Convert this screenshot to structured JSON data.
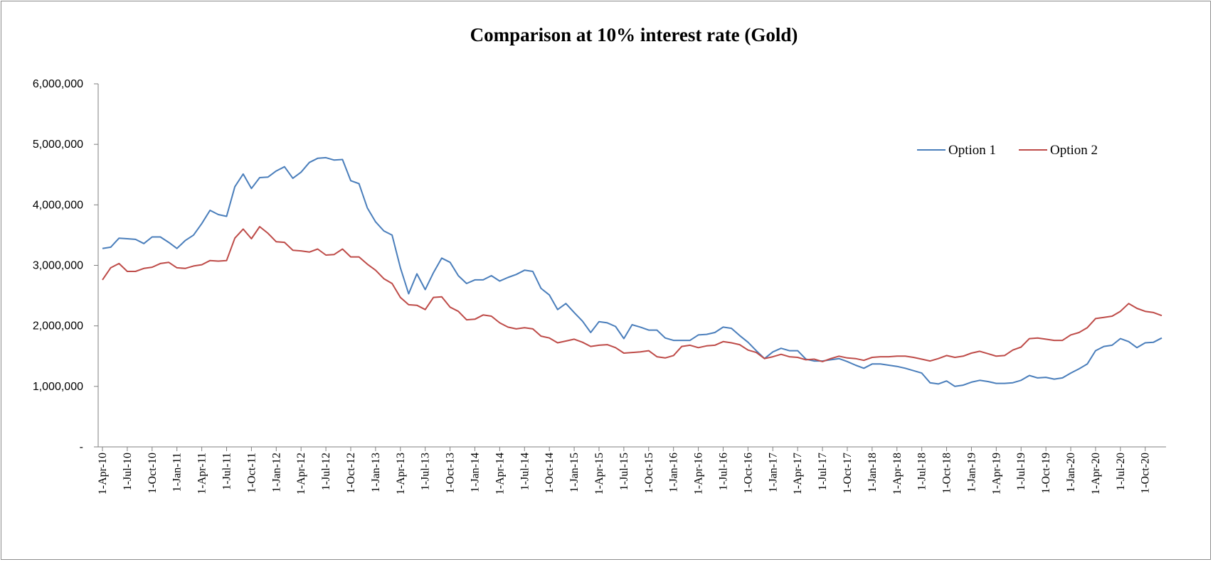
{
  "chart_data": {
    "type": "line",
    "title": "Comparison at 10% interest rate (Gold)",
    "xlabel": "",
    "ylabel": "",
    "ylim": [
      0,
      6000000
    ],
    "yticks": [
      0,
      1000000,
      2000000,
      3000000,
      4000000,
      5000000,
      6000000
    ],
    "ytick_labels": [
      "-",
      "1,000,000",
      "2,000,000",
      "3,000,000",
      "4,000,000",
      "5,000,000",
      "6,000,000"
    ],
    "x_start": "1-Apr-10",
    "x_interval_months": 1,
    "tick_labels": [
      "1-Apr-10",
      "1-Jul-10",
      "1-Oct-10",
      "1-Jan-11",
      "1-Apr-11",
      "1-Jul-11",
      "1-Oct-11",
      "1-Jan-12",
      "1-Apr-12",
      "1-Jul-12",
      "1-Oct-12",
      "1-Jan-13",
      "1-Apr-13",
      "1-Jul-13",
      "1-Oct-13",
      "1-Jan-14",
      "1-Apr-14",
      "1-Jul-14",
      "1-Oct-14",
      "1-Jan-15",
      "1-Apr-15",
      "1-Jul-15",
      "1-Oct-15",
      "1-Jan-16",
      "1-Apr-16",
      "1-Jul-16",
      "1-Oct-16",
      "1-Jan-17",
      "1-Apr-17",
      "1-Jul-17",
      "1-Oct-17",
      "1-Jan-18",
      "1-Apr-18",
      "1-Jul-18",
      "1-Oct-18",
      "1-Jan-19",
      "1-Apr-19",
      "1-Jul-19",
      "1-Oct-19",
      "1-Jan-20",
      "1-Apr-20",
      "1-Jul-20",
      "1-Oct-20"
    ],
    "grid": false,
    "legend_position": "top-right",
    "series": [
      {
        "name": "Option 1",
        "color": "#4a7ebb",
        "values": [
          3280000,
          3300000,
          3450000,
          3440000,
          3430000,
          3360000,
          3470000,
          3470000,
          3380000,
          3280000,
          3410000,
          3500000,
          3690000,
          3910000,
          3840000,
          3810000,
          4300000,
          4510000,
          4270000,
          4450000,
          4460000,
          4560000,
          4630000,
          4440000,
          4540000,
          4700000,
          4770000,
          4780000,
          4740000,
          4750000,
          4400000,
          4350000,
          3950000,
          3720000,
          3570000,
          3500000,
          2960000,
          2530000,
          2860000,
          2600000,
          2880000,
          3120000,
          3050000,
          2830000,
          2700000,
          2760000,
          2760000,
          2830000,
          2740000,
          2800000,
          2850000,
          2920000,
          2900000,
          2620000,
          2510000,
          2270000,
          2370000,
          2220000,
          2080000,
          1890000,
          2070000,
          2050000,
          1990000,
          1790000,
          2020000,
          1980000,
          1930000,
          1930000,
          1800000,
          1760000,
          1760000,
          1760000,
          1850000,
          1860000,
          1890000,
          1980000,
          1960000,
          1840000,
          1730000,
          1590000,
          1460000,
          1570000,
          1630000,
          1590000,
          1590000,
          1450000,
          1420000,
          1420000,
          1440000,
          1460000,
          1410000,
          1350000,
          1300000,
          1370000,
          1370000,
          1350000,
          1330000,
          1300000,
          1260000,
          1220000,
          1060000,
          1040000,
          1090000,
          1000000,
          1020000,
          1070000,
          1100000,
          1080000,
          1050000,
          1050000,
          1060000,
          1100000,
          1180000,
          1140000,
          1150000,
          1120000,
          1140000,
          1220000,
          1290000,
          1370000,
          1590000,
          1660000,
          1680000,
          1790000,
          1740000,
          1640000,
          1720000,
          1730000,
          1800000
        ],
        "values_unit": "monthly, starting 1-Apr-10"
      },
      {
        "name": "Option 2",
        "color": "#be4b48",
        "values": [
          2760000,
          2960000,
          3030000,
          2900000,
          2900000,
          2950000,
          2970000,
          3030000,
          3050000,
          2960000,
          2950000,
          2990000,
          3010000,
          3080000,
          3070000,
          3080000,
          3450000,
          3600000,
          3440000,
          3640000,
          3530000,
          3390000,
          3380000,
          3250000,
          3240000,
          3220000,
          3270000,
          3170000,
          3180000,
          3270000,
          3140000,
          3140000,
          3020000,
          2920000,
          2780000,
          2700000,
          2470000,
          2350000,
          2340000,
          2270000,
          2470000,
          2480000,
          2310000,
          2240000,
          2100000,
          2110000,
          2180000,
          2160000,
          2050000,
          1980000,
          1950000,
          1970000,
          1950000,
          1830000,
          1800000,
          1720000,
          1750000,
          1780000,
          1730000,
          1660000,
          1680000,
          1690000,
          1640000,
          1550000,
          1560000,
          1570000,
          1590000,
          1490000,
          1470000,
          1510000,
          1660000,
          1680000,
          1640000,
          1670000,
          1680000,
          1740000,
          1720000,
          1690000,
          1600000,
          1560000,
          1460000,
          1490000,
          1530000,
          1490000,
          1480000,
          1440000,
          1450000,
          1410000,
          1460000,
          1500000,
          1470000,
          1460000,
          1430000,
          1480000,
          1490000,
          1490000,
          1500000,
          1500000,
          1480000,
          1450000,
          1420000,
          1460000,
          1510000,
          1480000,
          1500000,
          1550000,
          1580000,
          1540000,
          1500000,
          1510000,
          1600000,
          1650000,
          1790000,
          1800000,
          1780000,
          1760000,
          1760000,
          1850000,
          1890000,
          1970000,
          2120000,
          2140000,
          2160000,
          2240000,
          2370000,
          2290000,
          2240000,
          2220000,
          2170000
        ],
        "values_unit": "monthly, starting 1-Apr-10"
      }
    ]
  }
}
